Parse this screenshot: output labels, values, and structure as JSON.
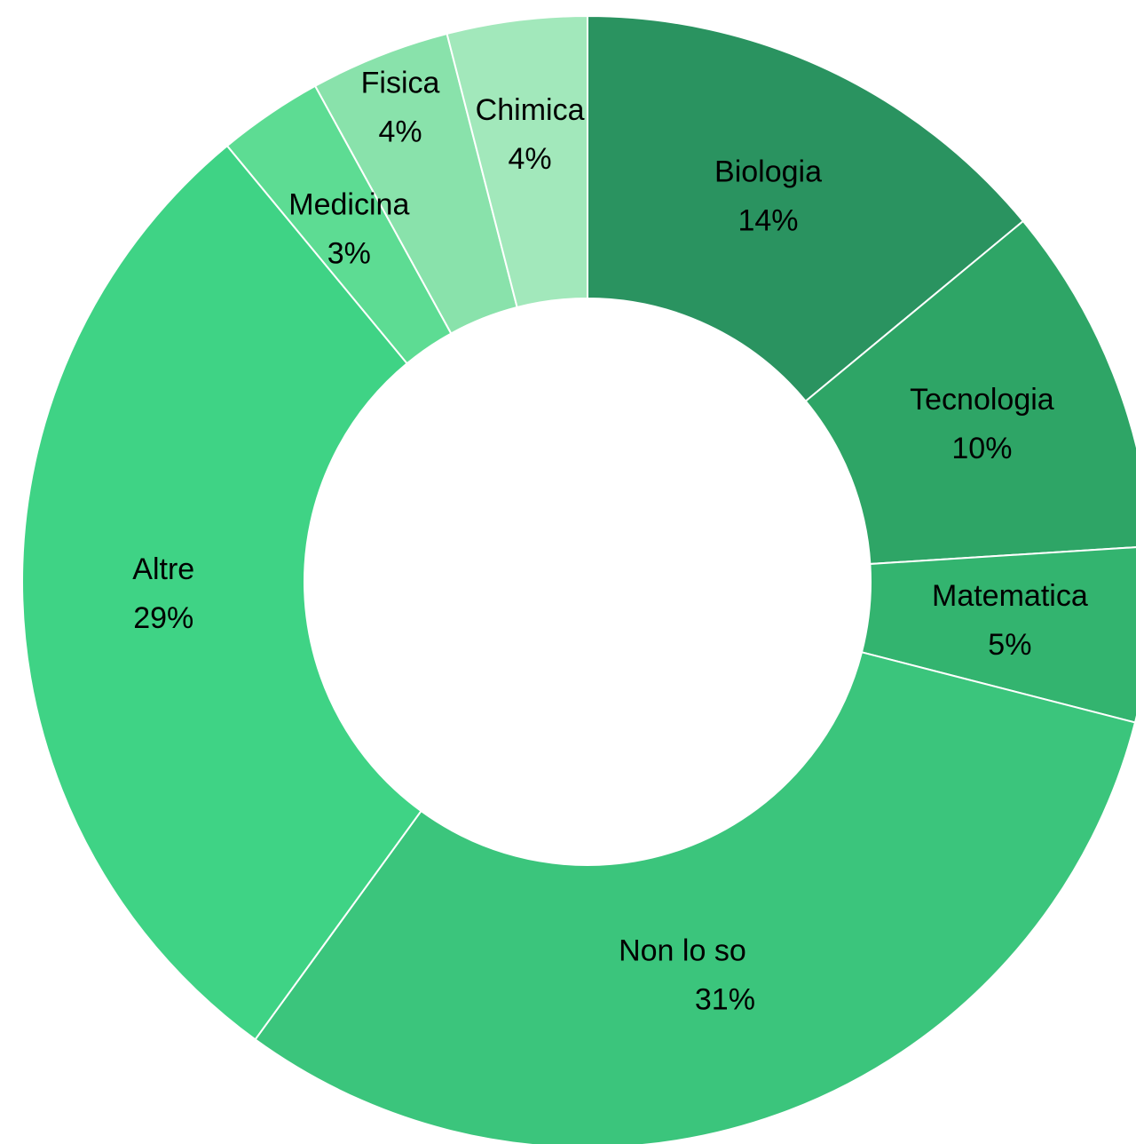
{
  "chart_data": {
    "type": "donut",
    "categories": [
      "Biologia",
      "Tecnologia",
      "Matematica",
      "Non lo so",
      "Altre",
      "Medicina",
      "Fisica",
      "Chimica"
    ],
    "values": [
      14,
      10,
      5,
      31,
      29,
      3,
      4,
      4
    ],
    "value_labels": [
      "14%",
      "10%",
      "5%",
      "31%",
      "29%",
      "3%",
      "4%",
      "4%"
    ],
    "colors": [
      "#2a9360",
      "#2ea566",
      "#33b46f",
      "#3bc57c",
      "#3fd385",
      "#5ddc93",
      "#89e2ab",
      "#a2e8bb"
    ]
  }
}
